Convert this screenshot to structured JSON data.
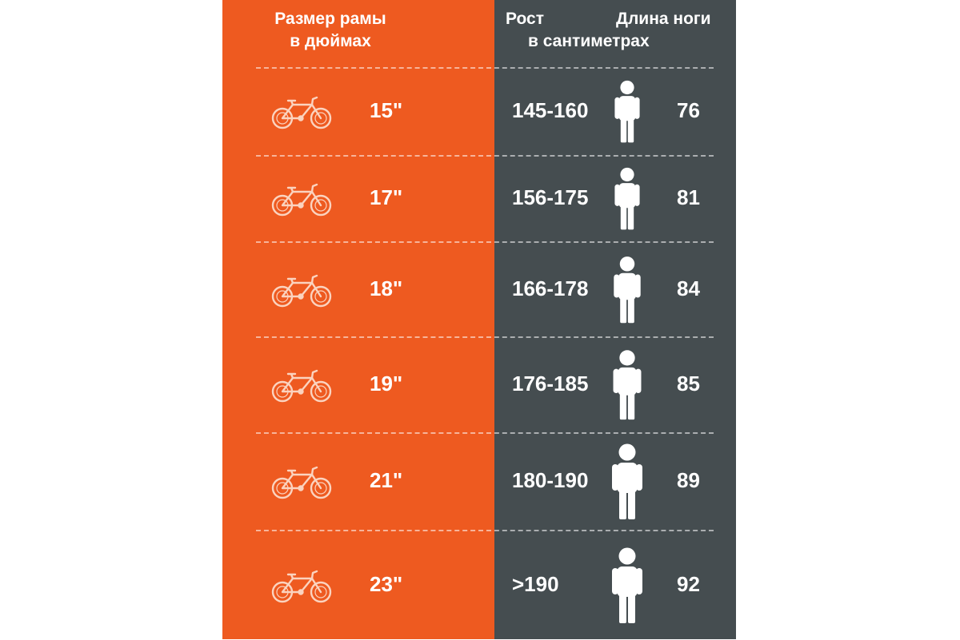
{
  "header": {
    "frame_size_line1": "Размер рамы",
    "frame_size_line2": "в дюймах",
    "height_label": "Рост",
    "leg_length_label": "Длина ноги",
    "unit_label": "в сантиметрах"
  },
  "rows": [
    {
      "frame_size": "15\"",
      "height": "145-160",
      "leg_length": "76"
    },
    {
      "frame_size": "17\"",
      "height": "156-175",
      "leg_length": "81"
    },
    {
      "frame_size": "18\"",
      "height": "166-178",
      "leg_length": "84"
    },
    {
      "frame_size": "19\"",
      "height": "176-185",
      "leg_length": "85"
    },
    {
      "frame_size": "21\"",
      "height": "180-190",
      "leg_length": "89"
    },
    {
      "frame_size": "23\"",
      "height": ">190",
      "leg_length": "92"
    }
  ],
  "icons": {
    "bike": "bicycle-icon",
    "person": "person-icon"
  },
  "colors": {
    "left_panel": "#ee5a20",
    "right_panel": "#454d50",
    "text": "#ffffff",
    "bike_icon": "#fbd3bf"
  }
}
